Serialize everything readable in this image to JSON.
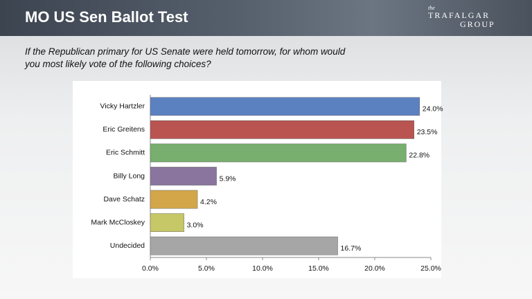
{
  "logo": {
    "small": "the",
    "line1": "TRAFALGAR",
    "line2": "GROUP"
  },
  "chart_data": {
    "type": "bar",
    "orientation": "horizontal",
    "title": "MO US Sen Ballot Test",
    "subtitle": "If the Republican primary for US Senate were held tomorrow, for whom would you most likely vote of the following choices?",
    "categories": [
      "Vicky Hartzler",
      "Eric Greitens",
      "Eric Schmitt",
      "Billy Long",
      "Dave Schatz",
      "Mark McCloskey",
      "Undecided"
    ],
    "values": [
      24.0,
      23.5,
      22.8,
      5.9,
      4.2,
      3.0,
      16.7
    ],
    "value_labels": [
      "24.0%",
      "23.5%",
      "22.8%",
      "5.9%",
      "4.2%",
      "3.0%",
      "16.7%"
    ],
    "colors": [
      "#5b81c1",
      "#b95450",
      "#78ae6e",
      "#8a759f",
      "#d3a64a",
      "#c6c766",
      "#a6a6a6"
    ],
    "xlim": [
      0,
      25
    ],
    "xticks": [
      {
        "value": 0,
        "label": "0.0%"
      },
      {
        "value": 5,
        "label": "5.0%"
      },
      {
        "value": 10,
        "label": "10.0%"
      },
      {
        "value": 15,
        "label": "15.0%"
      },
      {
        "value": 20,
        "label": "20.0%"
      },
      {
        "value": 25,
        "label": "25.0%"
      }
    ],
    "grid": false
  }
}
